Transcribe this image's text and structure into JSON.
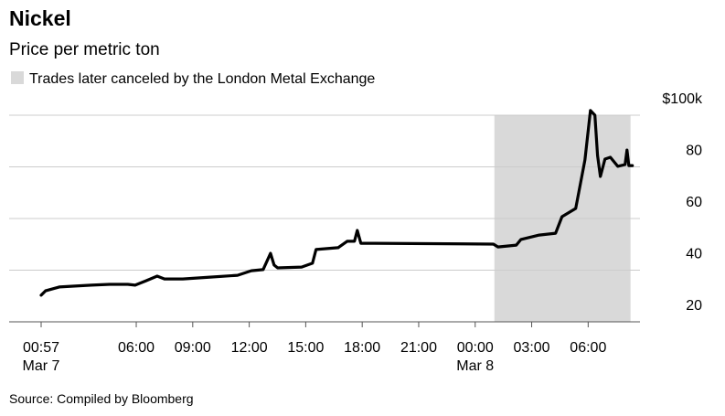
{
  "chart_data": {
    "type": "line",
    "title": "Nickel",
    "subtitle": "Price per metric ton",
    "source": "Source: Compiled by Bloomberg",
    "shade": {
      "x": [
        25.02,
        32.25
      ],
      "label": "Trades later canceled by the London Metal Exchange",
      "color": "#d9d9d9"
    },
    "color": "#000000",
    "x": [
      0.95,
      1.18,
      1.91,
      2.64,
      3.61,
      4.58,
      5.55,
      5.94,
      6.52,
      7.11,
      7.5,
      8.47,
      9.92,
      11.38,
      12.11,
      12.74,
      13.13,
      13.32,
      13.51,
      14.78,
      15.36,
      15.55,
      16.72,
      17.2,
      17.59,
      17.74,
      17.93,
      18.66,
      24.97,
      25.21,
      26.18,
      26.43,
      27.4,
      28.27,
      28.61,
      29.34,
      29.83,
      30.12,
      30.36,
      30.5,
      30.65,
      30.89,
      31.18,
      31.57,
      31.96,
      32.06,
      32.16,
      32.35
    ],
    "values": [
      30.3,
      32,
      33.5,
      33.8,
      34.2,
      34.5,
      34.5,
      34.2,
      35.9,
      37.7,
      36.6,
      36.6,
      37.3,
      38,
      39.8,
      40.2,
      46.5,
      42,
      40.9,
      41.2,
      42.7,
      48,
      48.7,
      51.2,
      51.2,
      55.4,
      50.4,
      50.4,
      50.1,
      49,
      49.7,
      51.9,
      53.6,
      54.3,
      60.7,
      63.9,
      82.7,
      101.8,
      100,
      84.4,
      76.3,
      83,
      83.7,
      80.2,
      80.9,
      86.5,
      80.5,
      80.5
    ],
    "xlim": [
      -0.75,
      36.15
    ],
    "xticks": [
      {
        "value": 0.95,
        "label": "00:57",
        "date": "Mar 7"
      },
      {
        "value": 6,
        "label": "06:00"
      },
      {
        "value": 9,
        "label": "09:00"
      },
      {
        "value": 12,
        "label": "12:00"
      },
      {
        "value": 15,
        "label": "15:00"
      },
      {
        "value": 18,
        "label": "18:00"
      },
      {
        "value": 21,
        "label": "21:00"
      },
      {
        "value": 24,
        "label": "00:00",
        "date": "Mar 8"
      },
      {
        "value": 27,
        "label": "03:00"
      },
      {
        "value": 30,
        "label": "06:00"
      }
    ],
    "ylim": [
      20,
      100
    ],
    "yticks": [
      20,
      40,
      60,
      80,
      {
        "value": 100,
        "label": "$100k"
      }
    ],
    "grid": true
  }
}
